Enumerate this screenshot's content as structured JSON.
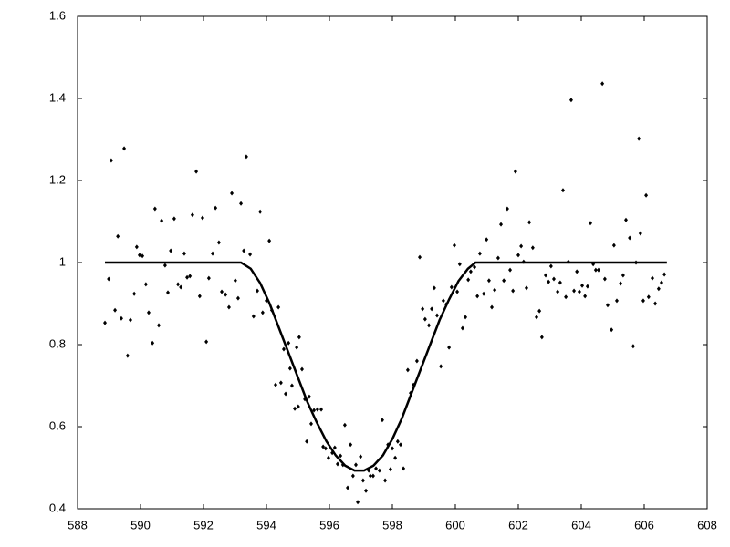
{
  "chart_data": {
    "type": "scatter",
    "xlim": [
      588,
      608
    ],
    "xticks": [
      588,
      590,
      592,
      594,
      596,
      598,
      600,
      602,
      604,
      606,
      608
    ],
    "ylim": [
      0.4,
      1.6
    ],
    "yticks": [
      0.4,
      0.6,
      0.8,
      1,
      1.2,
      1.4,
      1.6
    ],
    "grid": false,
    "series": [
      {
        "mode": "markers",
        "color": "#000000",
        "x": [
          588.87,
          588.99,
          589.07,
          589.19,
          589.28,
          589.39,
          589.48,
          589.59,
          589.68,
          589.8,
          589.88,
          589.97,
          590.06,
          590.17,
          590.26,
          590.38,
          590.46,
          590.58,
          590.67,
          590.78,
          590.87,
          590.96,
          591.07,
          591.19,
          591.28,
          591.39,
          591.48,
          591.57,
          591.65,
          591.77,
          591.88,
          591.97,
          592.09,
          592.17,
          592.29,
          592.38,
          592.49,
          592.58,
          592.7,
          592.81,
          592.9,
          593.01,
          593.1,
          593.19,
          593.28,
          593.36,
          593.48,
          593.59,
          593.71,
          593.8,
          593.88,
          594.0,
          594.09,
          594.17,
          594.29,
          594.38,
          594.46,
          594.55,
          594.61,
          594.7,
          594.75,
          594.81,
          594.9,
          594.96,
          595.01,
          595.04,
          595.13,
          595.22,
          595.28,
          595.36,
          595.42,
          595.51,
          595.62,
          595.74,
          595.8,
          595.88,
          595.97,
          596.09,
          596.17,
          596.26,
          596.35,
          596.43,
          596.49,
          596.58,
          596.67,
          596.75,
          596.84,
          596.9,
          596.99,
          597.07,
          597.16,
          597.25,
          597.3,
          597.39,
          597.48,
          597.59,
          597.68,
          597.77,
          597.86,
          597.94,
          598.0,
          598.09,
          598.17,
          598.26,
          598.35,
          598.49,
          598.58,
          598.67,
          598.78,
          598.87,
          598.96,
          599.04,
          599.16,
          599.25,
          599.33,
          599.42,
          599.54,
          599.62,
          599.71,
          599.8,
          599.88,
          599.97,
          600.06,
          600.14,
          600.23,
          600.32,
          600.41,
          600.49,
          600.61,
          600.7,
          600.78,
          600.9,
          600.99,
          601.07,
          601.16,
          601.25,
          601.36,
          601.45,
          601.54,
          601.65,
          601.74,
          601.83,
          601.91,
          602.0,
          602.09,
          602.17,
          602.26,
          602.35,
          602.46,
          602.58,
          602.67,
          602.75,
          602.87,
          602.96,
          603.04,
          603.13,
          603.25,
          603.33,
          603.42,
          603.51,
          603.59,
          603.68,
          603.77,
          603.86,
          603.94,
          604.03,
          604.12,
          604.2,
          604.29,
          604.38,
          604.46,
          604.55,
          604.67,
          604.75,
          604.84,
          604.96,
          605.04,
          605.13,
          605.25,
          605.33,
          605.42,
          605.54,
          605.65,
          605.74,
          605.83,
          605.88,
          605.97,
          606.06,
          606.14,
          606.26,
          606.35,
          606.46,
          606.55,
          606.64
        ],
        "values": [
          0.853,
          0.96,
          1.249,
          0.884,
          1.064,
          0.864,
          1.278,
          0.773,
          0.86,
          0.924,
          1.038,
          1.018,
          1.016,
          0.947,
          0.878,
          0.804,
          1.131,
          0.847,
          1.102,
          0.993,
          0.927,
          1.029,
          1.107,
          0.947,
          0.94,
          1.022,
          0.964,
          0.967,
          1.116,
          1.222,
          0.918,
          1.109,
          0.807,
          0.962,
          1.022,
          1.133,
          1.049,
          0.929,
          0.922,
          0.891,
          1.169,
          0.956,
          0.913,
          1.144,
          1.029,
          1.258,
          1.02,
          0.869,
          0.931,
          1.124,
          0.878,
          0.907,
          1.053,
          0.884,
          0.702,
          0.891,
          0.707,
          0.789,
          0.68,
          0.804,
          0.742,
          0.7,
          0.644,
          0.793,
          0.649,
          0.818,
          0.74,
          0.667,
          0.564,
          0.673,
          0.607,
          0.64,
          0.642,
          0.642,
          0.551,
          0.547,
          0.524,
          0.536,
          0.549,
          0.509,
          0.529,
          0.507,
          0.604,
          0.451,
          0.556,
          0.48,
          0.507,
          0.416,
          0.527,
          0.469,
          0.444,
          0.493,
          0.48,
          0.48,
          0.498,
          0.493,
          0.616,
          0.469,
          0.556,
          0.496,
          0.547,
          0.524,
          0.564,
          0.556,
          0.498,
          0.738,
          0.682,
          0.702,
          0.76,
          1.013,
          0.887,
          0.862,
          0.847,
          0.887,
          0.938,
          0.871,
          0.747,
          0.907,
          0.898,
          0.793,
          0.94,
          1.042,
          0.929,
          0.996,
          0.84,
          0.867,
          0.958,
          0.978,
          0.989,
          0.918,
          1.022,
          0.924,
          1.056,
          0.956,
          0.891,
          0.933,
          1.011,
          1.093,
          0.956,
          1.131,
          0.982,
          0.931,
          1.222,
          1.018,
          1.04,
          1.002,
          0.938,
          1.098,
          1.036,
          0.867,
          0.882,
          0.818,
          0.969,
          0.953,
          0.991,
          0.96,
          0.929,
          0.951,
          1.176,
          0.916,
          1.002,
          1.396,
          0.931,
          0.978,
          0.929,
          0.944,
          0.918,
          0.942,
          1.096,
          0.996,
          0.982,
          0.982,
          1.436,
          0.96,
          0.896,
          0.836,
          1.042,
          0.907,
          0.949,
          0.969,
          1.104,
          1.06,
          0.796,
          1.0,
          1.302,
          1.071,
          0.907,
          1.164,
          0.916,
          0.962,
          0.9,
          0.936,
          0.951,
          0.971
        ]
      },
      {
        "mode": "line",
        "color": "#000000",
        "x": [
          588.87,
          593.19,
          593.5,
          593.8,
          594.1,
          594.4,
          594.7,
          595.0,
          595.3,
          595.6,
          595.9,
          596.2,
          596.5,
          596.8,
          597.1,
          597.4,
          597.7,
          598.0,
          598.3,
          598.6,
          598.9,
          599.2,
          599.5,
          599.8,
          600.1,
          600.4,
          600.64,
          606.72
        ],
        "values": [
          1.0,
          1.0,
          0.985,
          0.95,
          0.9,
          0.84,
          0.78,
          0.72,
          0.66,
          0.61,
          0.565,
          0.53,
          0.505,
          0.493,
          0.493,
          0.505,
          0.53,
          0.57,
          0.62,
          0.68,
          0.74,
          0.8,
          0.86,
          0.91,
          0.955,
          0.985,
          1.0,
          1.0
        ]
      }
    ]
  }
}
